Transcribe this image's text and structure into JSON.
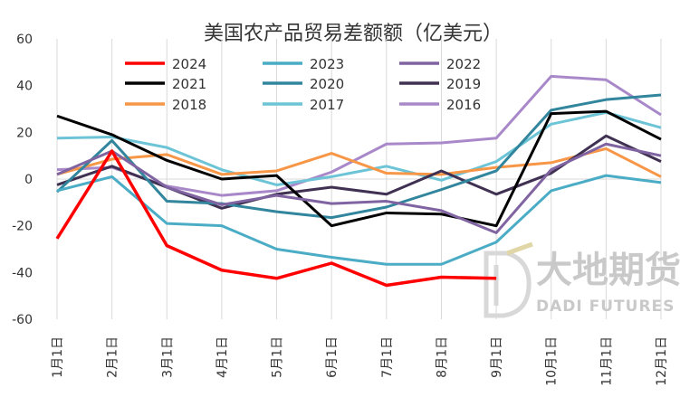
{
  "chart_data": {
    "type": "line",
    "title": "美国农产品贸易差额额（亿美元）",
    "categories": [
      "1月1日",
      "2月1日",
      "3月1日",
      "4月1日",
      "5月1日",
      "6月1日",
      "7月1日",
      "8月1日",
      "9月1日",
      "10月1日",
      "11月1日",
      "12月1日"
    ],
    "ylim": [
      -60,
      60
    ],
    "yticks": [
      -60,
      -40,
      -20,
      0,
      20,
      40,
      60
    ],
    "grid": "vertical",
    "legend_position": "top-left",
    "series": [
      {
        "name": "2024",
        "color": "#ff0000",
        "values": [
          -25.5,
          12,
          -28.5,
          -39,
          -42.5,
          -36,
          -45.5,
          -42,
          -42.5,
          null,
          null,
          null
        ]
      },
      {
        "name": "2023",
        "color": "#4bacc6",
        "values": [
          -5,
          1,
          -19,
          -20,
          -30,
          -33.5,
          -36.5,
          -36.5,
          -27,
          -5,
          1.5,
          -1.5
        ]
      },
      {
        "name": "2022",
        "color": "#8064a2",
        "values": [
          2,
          12,
          -3.5,
          -11,
          -7,
          -10.5,
          -9.5,
          -13.5,
          -23,
          4,
          15,
          10
        ]
      },
      {
        "name": "2021",
        "color": "#000000",
        "values": [
          27,
          19,
          8,
          0,
          1.5,
          -20,
          -14.5,
          -15,
          -20,
          28,
          29,
          17
        ]
      },
      {
        "name": "2020",
        "color": "#31859c",
        "values": [
          -5.5,
          16.5,
          -9.5,
          -10.5,
          -14,
          -16.5,
          -12,
          -4.5,
          3.5,
          29.5,
          34,
          36
        ]
      },
      {
        "name": "2019",
        "color": "#403152",
        "values": [
          -2.5,
          5.5,
          -3.5,
          -12.5,
          -6.5,
          -3.5,
          -6.5,
          3.5,
          -6.5,
          2.5,
          18.5,
          7.5
        ]
      },
      {
        "name": "2018",
        "color": "#f79646",
        "values": [
          2,
          8.5,
          10.5,
          2,
          3.5,
          11,
          2.5,
          2,
          5,
          7,
          13,
          1
        ]
      },
      {
        "name": "2017",
        "color": "#6cc4d6",
        "values": [
          17.5,
          18,
          13.5,
          4,
          -2.5,
          1,
          5.5,
          -0.5,
          7.5,
          23.5,
          28.5,
          22
        ]
      },
      {
        "name": "2016",
        "color": "#a888c9",
        "values": [
          4,
          5,
          -3,
          -7,
          -5,
          3,
          15,
          15.5,
          17.5,
          44,
          42.5,
          27.5
        ]
      }
    ]
  },
  "watermark": {
    "big": "大地期货",
    "small": "DADI FUTURES"
  }
}
